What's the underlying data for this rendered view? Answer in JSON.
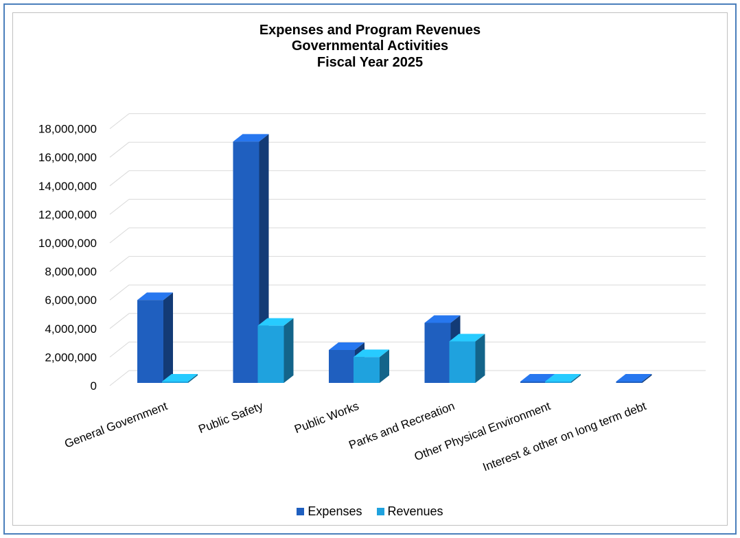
{
  "chart_data": {
    "type": "bar",
    "title": [
      "Expenses and Program Revenues",
      "Governmental Activities",
      "Fiscal Year 2025"
    ],
    "categories": [
      "General Government",
      "Public Safety",
      "Public Works",
      "Parks and Recreation",
      "Other Physical Environment",
      "Interest & other on long term debt"
    ],
    "series": [
      {
        "name": "Expenses",
        "values": [
          6000000,
          17100000,
          2500000,
          4400000,
          50000,
          80000
        ],
        "color": "#1f5fbf"
      },
      {
        "name": "Revenues",
        "values": [
          200000,
          4200000,
          2000000,
          3100000,
          150000,
          0
        ],
        "color": "#1fa2de"
      }
    ],
    "ylim": [
      0,
      18000000
    ],
    "yticks": [
      "0",
      "2,000,000",
      "4,000,000",
      "6,000,000",
      "8,000,000",
      "10,000,000",
      "12,000,000",
      "14,000,000",
      "16,000,000",
      "18,000,000"
    ],
    "grid": true,
    "legend_position": "bottom",
    "style": "3d-column"
  }
}
